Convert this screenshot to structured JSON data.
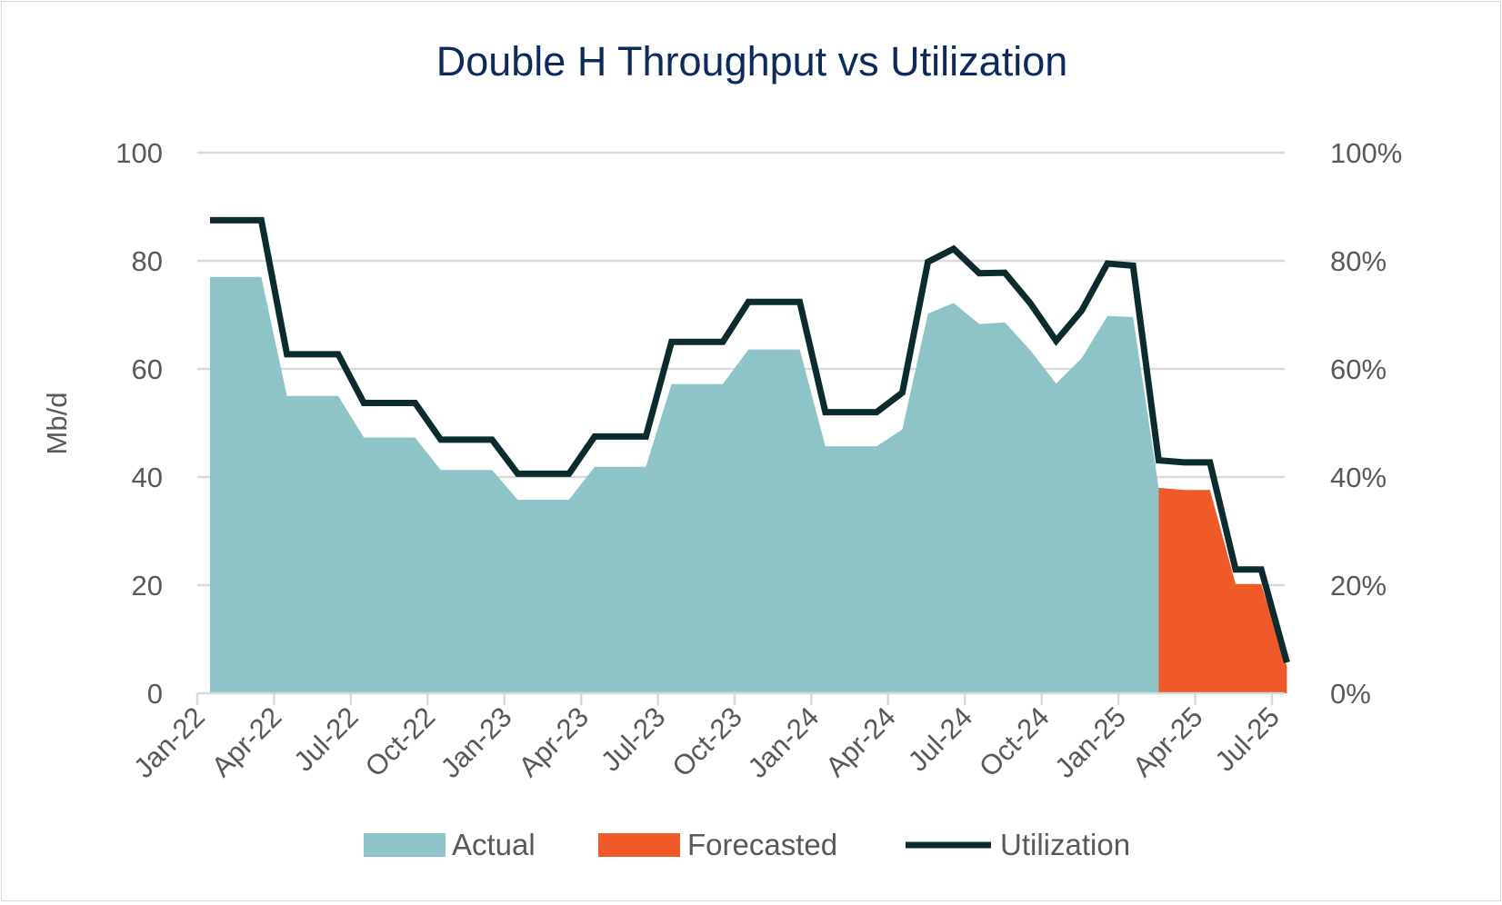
{
  "chart_data": {
    "type": "area",
    "title": "Double H Throughput vs Utilization",
    "ylabel": "Mb/d",
    "ylabel_right": "",
    "ylim": [
      0,
      100
    ],
    "ylim_right": [
      0,
      1
    ],
    "y_ticks": [
      "0",
      "20",
      "40",
      "60",
      "80",
      "100"
    ],
    "y_right_ticks": [
      "0%",
      "20%",
      "40%",
      "60%",
      "80%",
      "100%"
    ],
    "x_tick_labels": [
      "Jan-22",
      "Apr-22",
      "Jul-22",
      "Oct-22",
      "Jan-23",
      "Apr-23",
      "Jul-23",
      "Oct-23",
      "Jan-24",
      "Apr-24",
      "Jul-24",
      "Oct-24",
      "Jan-25",
      "Apr-25",
      "Jul-25"
    ],
    "gridlines": true,
    "legend_position": "bottom",
    "colors": {
      "actual": "#8ec4c7",
      "forecasted": "#f05a28",
      "utilization": "#0b2b2f",
      "title": "#0d2a5c",
      "axis_text": "#595959",
      "grid": "#d9d9d9"
    },
    "series": [
      {
        "name": "Actual",
        "type": "area",
        "axis": "left",
        "x": [
          "2022-01",
          "2022-02",
          "2022-03",
          "2022-04",
          "2022-05",
          "2022-06",
          "2022-07",
          "2022-08",
          "2022-09",
          "2022-10",
          "2022-11",
          "2022-12",
          "2023-01",
          "2023-02",
          "2023-03",
          "2023-04",
          "2023-05",
          "2023-06",
          "2023-07",
          "2023-08",
          "2023-09",
          "2023-10",
          "2023-11",
          "2023-12",
          "2024-01",
          "2024-02",
          "2024-03",
          "2024-04",
          "2024-05",
          "2024-06",
          "2024-07",
          "2024-08",
          "2024-09",
          "2024-10",
          "2024-11",
          "2024-12",
          "2025-01",
          "2025-02",
          "2025-03"
        ],
        "values": [
          77,
          77,
          77,
          55,
          55,
          55,
          47.3,
          47.3,
          47.3,
          41.3,
          41.3,
          41.3,
          35.8,
          35.8,
          35.8,
          41.9,
          41.9,
          41.9,
          57.2,
          57.2,
          57.2,
          63.6,
          63.6,
          63.6,
          45.7,
          45.7,
          45.7,
          48.8,
          70.2,
          72.2,
          68.3,
          68.6,
          63.4,
          57.3,
          62.0,
          69.8,
          69.6,
          38,
          0
        ]
      },
      {
        "name": "Forecasted",
        "type": "area",
        "axis": "left",
        "x": [
          "2025-02",
          "2025-03",
          "2025-04",
          "2025-05",
          "2025-06",
          "2025-07"
        ],
        "values": [
          38,
          37.6,
          37.6,
          20.2,
          20.2,
          5
        ]
      },
      {
        "name": "Utilization",
        "type": "line",
        "axis": "right",
        "x": [
          "2022-01",
          "2022-02",
          "2022-03",
          "2022-04",
          "2022-05",
          "2022-06",
          "2022-07",
          "2022-08",
          "2022-09",
          "2022-10",
          "2022-11",
          "2022-12",
          "2023-01",
          "2023-02",
          "2023-03",
          "2023-04",
          "2023-05",
          "2023-06",
          "2023-07",
          "2023-08",
          "2023-09",
          "2023-10",
          "2023-11",
          "2023-12",
          "2024-01",
          "2024-02",
          "2024-03",
          "2024-04",
          "2024-05",
          "2024-06",
          "2024-07",
          "2024-08",
          "2024-09",
          "2024-10",
          "2024-11",
          "2024-12",
          "2025-01",
          "2025-02",
          "2025-03",
          "2025-04",
          "2025-05",
          "2025-06",
          "2025-07"
        ],
        "values": [
          0.875,
          0.875,
          0.875,
          0.627,
          0.627,
          0.627,
          0.537,
          0.537,
          0.537,
          0.469,
          0.469,
          0.469,
          0.406,
          0.406,
          0.406,
          0.475,
          0.475,
          0.475,
          0.65,
          0.65,
          0.65,
          0.724,
          0.724,
          0.724,
          0.52,
          0.52,
          0.52,
          0.556,
          0.798,
          0.822,
          0.777,
          0.778,
          0.721,
          0.652,
          0.708,
          0.795,
          0.791,
          0.431,
          0.427,
          0.427,
          0.229,
          0.229,
          0.057
        ]
      }
    ]
  }
}
